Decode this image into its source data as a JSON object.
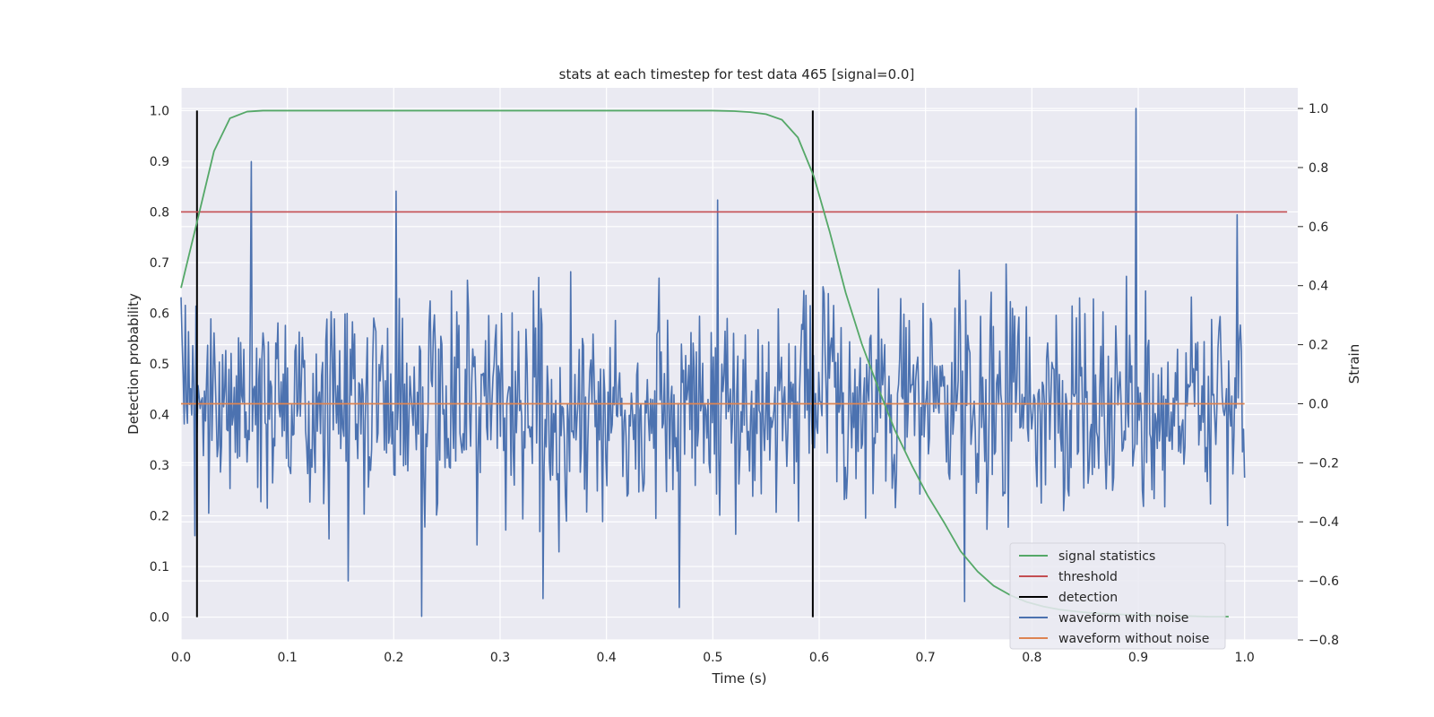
{
  "chart_data": {
    "type": "line",
    "title": "stats at each timestep for test data 465 [signal=0.0]",
    "xlabel": "Time (s)",
    "ylabel_left": "Detection probability",
    "ylabel_right": "Strain",
    "xlim": [
      0.0,
      1.05
    ],
    "ylim_left": [
      -0.045,
      1.045
    ],
    "ylim_right": [
      -0.8,
      1.07
    ],
    "grid": true,
    "legend_position": "lower-right",
    "x_ticks": [
      "0.0",
      "0.1",
      "0.2",
      "0.3",
      "0.4",
      "0.5",
      "0.6",
      "0.7",
      "0.8",
      "0.9",
      "1.0"
    ],
    "y_ticks_left": [
      "0.0",
      "0.1",
      "0.2",
      "0.3",
      "0.4",
      "0.5",
      "0.6",
      "0.7",
      "0.8",
      "0.9",
      "1.0"
    ],
    "y_ticks_right": [
      "−0.8",
      "−0.6",
      "−0.4",
      "−0.2",
      "0.0",
      "0.2",
      "0.4",
      "0.6",
      "0.8",
      "1.0"
    ],
    "y_tick_values_right": [
      -0.8,
      -0.6,
      -0.4,
      -0.2,
      0.0,
      0.2,
      0.4,
      0.6,
      0.8,
      1.0
    ],
    "series": [
      {
        "name": "signal statistics",
        "axis": "left",
        "color": "#55a868",
        "x": [
          0.0,
          0.015,
          0.031,
          0.046,
          0.062,
          0.077,
          0.093,
          0.2,
          0.3,
          0.4,
          0.5,
          0.52,
          0.535,
          0.55,
          0.565,
          0.58,
          0.595,
          0.61,
          0.625,
          0.64,
          0.656,
          0.671,
          0.687,
          0.702,
          0.718,
          0.733,
          0.749,
          0.764,
          0.78,
          0.795,
          0.811,
          0.826,
          0.842,
          0.857,
          0.873,
          0.888,
          0.904,
          0.92,
          0.935,
          0.95,
          0.966,
          0.985
        ],
        "values": [
          0.65,
          0.78,
          0.92,
          0.985,
          0.998,
          1.0,
          1.0,
          1.0,
          1.0,
          1.0,
          1.0,
          0.999,
          0.997,
          0.993,
          0.982,
          0.947,
          0.87,
          0.76,
          0.64,
          0.54,
          0.45,
          0.37,
          0.3,
          0.24,
          0.185,
          0.13,
          0.09,
          0.062,
          0.043,
          0.03,
          0.021,
          0.015,
          0.011,
          0.008,
          0.006,
          0.005,
          0.004,
          0.003,
          0.002,
          0.002,
          0.001,
          0.001
        ]
      },
      {
        "name": "threshold",
        "axis": "left",
        "color": "#c44e52",
        "x": [
          0.0,
          1.04
        ],
        "values": [
          0.8,
          0.8
        ]
      },
      {
        "name": "detection",
        "axis": "left",
        "color": "#000000",
        "x": [
          0.015,
          0.594
        ],
        "y_range": [
          0.0,
          1.0
        ]
      },
      {
        "name": "waveform with noise",
        "axis": "right",
        "color": "#4c72b0",
        "x_range": [
          0.0,
          1.0
        ],
        "n_points": 1000,
        "y_range": [
          -0.72,
          1.0
        ],
        "peaks": [
          {
            "x": 0.066,
            "y": 0.82
          },
          {
            "x": 0.202,
            "y": 0.72
          },
          {
            "x": 0.226,
            "y": -0.72
          },
          {
            "x": 0.505,
            "y": 0.69
          },
          {
            "x": 0.898,
            "y": 1.0
          },
          {
            "x": 0.737,
            "y": -0.67
          },
          {
            "x": 0.157,
            "y": -0.6
          },
          {
            "x": 0.34,
            "y": -0.66
          },
          {
            "x": 0.468,
            "y": -0.69
          },
          {
            "x": 0.993,
            "y": 0.64
          }
        ]
      },
      {
        "name": "waveform without noise",
        "axis": "right",
        "color": "#dd8452",
        "x": [
          0.0,
          1.0
        ],
        "values": [
          0.0,
          0.0
        ]
      }
    ]
  }
}
